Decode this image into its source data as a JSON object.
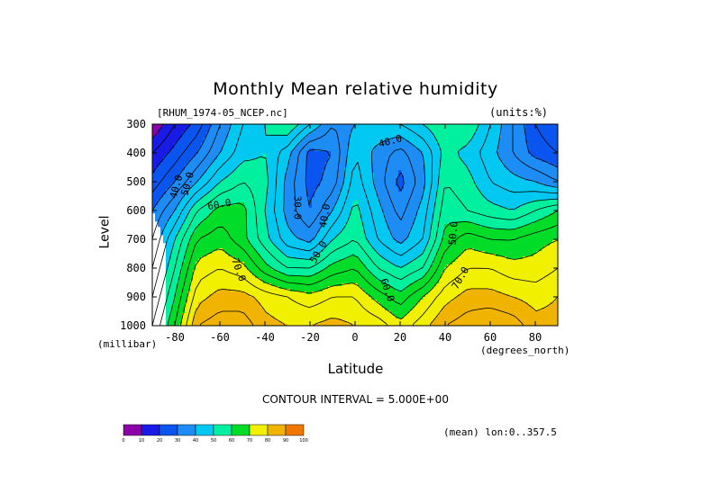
{
  "colors": {
    "bands": [
      "#8b00a8",
      "#1a1ae6",
      "#0a55f0",
      "#1e8cf5",
      "#00c8f0",
      "#00f0a0",
      "#00dc28",
      "#f0f000",
      "#f0b400",
      "#f07800",
      "#f03c00",
      "#e60000"
    ],
    "contour_line": "#000000",
    "background": "#ffffff"
  },
  "chart_data": {
    "type": "heatmap",
    "title": "Monthly Mean relative humidity",
    "file_label": "[RHUM_1974-05_NCEP.nc]",
    "units": "(units:%)",
    "xlabel": "Latitude",
    "x_units": "(degrees_north)",
    "ylabel": "Level",
    "y_units": "(millibar)",
    "contour_interval_text": "CONTOUR INTERVAL = 5.000E+00",
    "mean_text": "(mean) lon:0..357.5",
    "xlim": [
      -90,
      90
    ],
    "ylim": [
      1000,
      300
    ],
    "x_ticks": [
      -80,
      -60,
      -40,
      -20,
      0,
      20,
      40,
      60,
      80
    ],
    "y_ticks": [
      300,
      400,
      500,
      600,
      700,
      800,
      900,
      1000
    ],
    "x": [
      -90,
      -80,
      -70,
      -60,
      -50,
      -40,
      -30,
      -20,
      -10,
      0,
      10,
      20,
      30,
      40,
      50,
      60,
      70,
      80,
      90
    ],
    "levels": [
      300,
      400,
      500,
      600,
      700,
      800,
      900,
      1000
    ],
    "values": [
      [
        5,
        15,
        22,
        35,
        45,
        50,
        55,
        45,
        35,
        40,
        45,
        45,
        50,
        55,
        55,
        45,
        35,
        25,
        20
      ],
      [
        15,
        22,
        30,
        40,
        48,
        50,
        42,
        28,
        30,
        45,
        38,
        33,
        40,
        52,
        48,
        42,
        35,
        28,
        25
      ],
      [
        22,
        30,
        40,
        50,
        55,
        52,
        38,
        28,
        32,
        48,
        38,
        28,
        38,
        55,
        52,
        45,
        42,
        40,
        35
      ],
      [
        30,
        40,
        55,
        62,
        62,
        50,
        38,
        30,
        40,
        52,
        42,
        33,
        42,
        58,
        55,
        52,
        50,
        55,
        60
      ],
      [
        35,
        50,
        65,
        68,
        62,
        52,
        42,
        38,
        50,
        55,
        45,
        38,
        45,
        62,
        68,
        65,
        65,
        68,
        70
      ],
      [
        40,
        55,
        72,
        75,
        72,
        62,
        55,
        55,
        62,
        65,
        55,
        50,
        55,
        70,
        75,
        75,
        72,
        72,
        75
      ],
      [
        45,
        60,
        78,
        82,
        82,
        78,
        75,
        72,
        75,
        75,
        68,
        62,
        70,
        78,
        82,
        82,
        80,
        78,
        80
      ],
      [
        50,
        65,
        85,
        88,
        88,
        82,
        80,
        80,
        82,
        80,
        78,
        72,
        78,
        85,
        88,
        90,
        88,
        82,
        82
      ]
    ],
    "contour_labels": [
      {
        "text": "40.0",
        "x": -78,
        "y": 520,
        "rotate": -75
      },
      {
        "text": "50.0",
        "x": -73,
        "y": 510,
        "rotate": -75
      },
      {
        "text": "60.0",
        "x": -60,
        "y": 590,
        "rotate": -10
      },
      {
        "text": "30.0",
        "x": -27,
        "y": 590,
        "rotate": 90
      },
      {
        "text": "40.0",
        "x": -12,
        "y": 620,
        "rotate": -80
      },
      {
        "text": "50.0",
        "x": -15,
        "y": 750,
        "rotate": -60
      },
      {
        "text": "40.0",
        "x": 16,
        "y": 370,
        "rotate": -15
      },
      {
        "text": "50.0",
        "x": 45,
        "y": 680,
        "rotate": -85
      },
      {
        "text": "70.0",
        "x": -53,
        "y": 810,
        "rotate": 70
      },
      {
        "text": "60.0",
        "x": 13,
        "y": 880,
        "rotate": 70
      },
      {
        "text": "70.0",
        "x": 48,
        "y": 840,
        "rotate": -60
      }
    ],
    "colorbar": {
      "levels": [
        0,
        10,
        20,
        30,
        40,
        50,
        60,
        70,
        80,
        90,
        100
      ],
      "labels": [
        "0",
        "10",
        "20",
        "30",
        "40",
        "50",
        "60",
        "70",
        "80",
        "90",
        "100"
      ]
    }
  }
}
